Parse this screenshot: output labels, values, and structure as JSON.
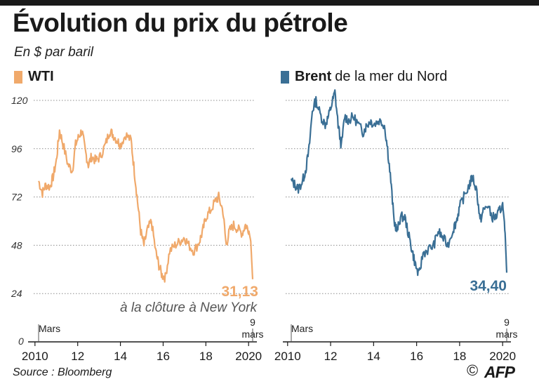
{
  "header": {
    "title": "Évolution du prix du pétrole",
    "subtitle": "En $ par baril"
  },
  "legend": {
    "wti_label": "WTI",
    "brent_bold": "Brent",
    "brent_rest": "de la mer du Nord"
  },
  "annotations": {
    "wti_last": "31,13",
    "wti_note": "à la clôture à New York",
    "brent_last": "34,40",
    "start_month": "Mars",
    "end_day": "9",
    "end_month": "mars"
  },
  "footer": {
    "source": "Source : Bloomberg",
    "copyright": "©",
    "logo": "AFP"
  },
  "colors": {
    "wti": "#f0a96b",
    "brent": "#3a6f95",
    "grid": "#8c8c8c"
  },
  "chart_data": [
    {
      "type": "line",
      "name": "WTI",
      "title": "WTI",
      "ylabel": "En $ par baril",
      "ylim": [
        0,
        120
      ],
      "yticks": [
        0,
        24,
        48,
        72,
        96,
        120
      ],
      "xlim": [
        2010.17,
        2020.19
      ],
      "xticks": [
        2010,
        2012,
        2014,
        2016,
        2018,
        2020
      ],
      "xtick_labels": [
        "2010",
        "12",
        "14",
        "16",
        "18",
        "2020"
      ],
      "grid": true,
      "x": [
        2010.17,
        2010.35,
        2010.5,
        2010.7,
        2010.85,
        2011.0,
        2011.15,
        2011.32,
        2011.55,
        2011.75,
        2011.9,
        2012.05,
        2012.2,
        2012.35,
        2012.5,
        2012.65,
        2012.85,
        2013.05,
        2013.3,
        2013.5,
        2013.65,
        2013.85,
        2014.0,
        2014.25,
        2014.5,
        2014.65,
        2014.8,
        2014.95,
        2015.1,
        2015.25,
        2015.45,
        2015.65,
        2015.8,
        2015.95,
        2016.1,
        2016.3,
        2016.55,
        2016.8,
        2017.0,
        2017.2,
        2017.45,
        2017.7,
        2017.85,
        2018.0,
        2018.2,
        2018.45,
        2018.6,
        2018.8,
        2018.95,
        2019.1,
        2019.3,
        2019.5,
        2019.7,
        2019.85,
        2020.0,
        2020.1,
        2020.19
      ],
      "values": [
        80,
        74,
        78,
        77,
        82,
        90,
        105,
        98,
        88,
        85,
        98,
        102,
        105,
        95,
        88,
        92,
        90,
        92,
        98,
        105,
        103,
        100,
        98,
        103,
        100,
        85,
        70,
        55,
        48,
        55,
        60,
        45,
        38,
        33,
        32,
        45,
        48,
        50,
        52,
        48,
        45,
        50,
        55,
        62,
        65,
        70,
        72,
        65,
        48,
        55,
        58,
        56,
        54,
        58,
        56,
        50,
        31.13
      ]
    },
    {
      "type": "line",
      "name": "Brent de la mer du Nord",
      "title": "Brent de la mer du Nord",
      "ylim": [
        0,
        120
      ],
      "yticks": [
        0,
        24,
        48,
        72,
        96,
        120
      ],
      "xlim": [
        2010.17,
        2020.19
      ],
      "xticks": [
        2010,
        2012,
        2014,
        2016,
        2018,
        2020
      ],
      "xtick_labels": [
        "2010",
        "12",
        "14",
        "16",
        "18",
        "2020"
      ],
      "grid": true,
      "x": [
        2010.17,
        2010.35,
        2010.5,
        2010.7,
        2010.85,
        2011.0,
        2011.15,
        2011.32,
        2011.55,
        2011.75,
        2011.9,
        2012.05,
        2012.2,
        2012.35,
        2012.5,
        2012.65,
        2012.85,
        2013.05,
        2013.3,
        2013.5,
        2013.65,
        2013.85,
        2014.0,
        2014.25,
        2014.5,
        2014.65,
        2014.8,
        2014.95,
        2015.1,
        2015.25,
        2015.45,
        2015.65,
        2015.8,
        2015.95,
        2016.1,
        2016.3,
        2016.55,
        2016.8,
        2017.0,
        2017.2,
        2017.45,
        2017.7,
        2017.85,
        2018.0,
        2018.2,
        2018.45,
        2018.6,
        2018.8,
        2018.95,
        2019.1,
        2019.3,
        2019.5,
        2019.7,
        2019.85,
        2020.0,
        2020.1,
        2020.19
      ],
      "values": [
        80,
        78,
        76,
        80,
        86,
        96,
        115,
        120,
        112,
        108,
        112,
        118,
        124,
        108,
        97,
        112,
        110,
        112,
        108,
        104,
        107,
        110,
        108,
        110,
        108,
        96,
        80,
        60,
        55,
        62,
        62,
        52,
        45,
        38,
        33,
        44,
        46,
        48,
        55,
        52,
        48,
        56,
        60,
        67,
        72,
        78,
        82,
        75,
        60,
        65,
        68,
        62,
        62,
        65,
        68,
        58,
        34.4
      ]
    }
  ]
}
